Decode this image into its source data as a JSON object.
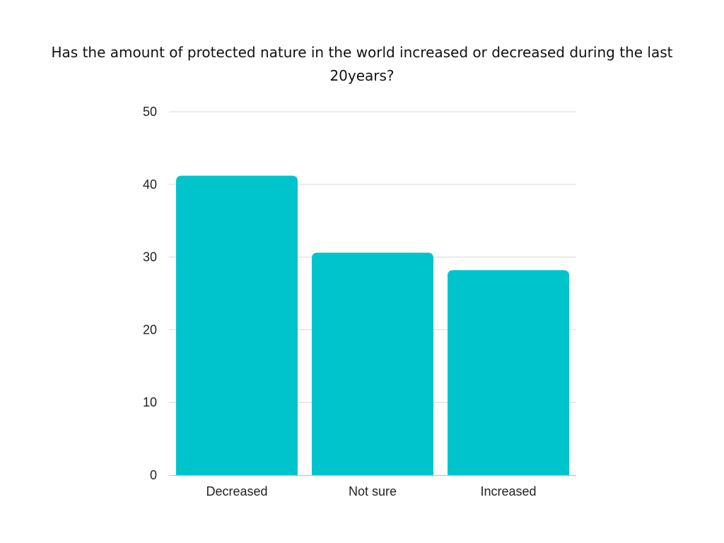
{
  "chart_data": {
    "type": "bar",
    "title": "Has the amount of protected nature in the world increased or decreased during the last 20years?",
    "categories": [
      "Decreased",
      "Not sure",
      "Increased"
    ],
    "values": [
      41.2,
      30.6,
      28.2
    ],
    "xlabel": "",
    "ylabel": "",
    "ylim": [
      0,
      50
    ],
    "yticks": [
      "0",
      "10",
      "20",
      "30",
      "40",
      "50"
    ],
    "grid": true,
    "bar_color": "#00c4cc",
    "grid_color": "#d9d9d9",
    "axis_color": "#bfbfbf"
  }
}
